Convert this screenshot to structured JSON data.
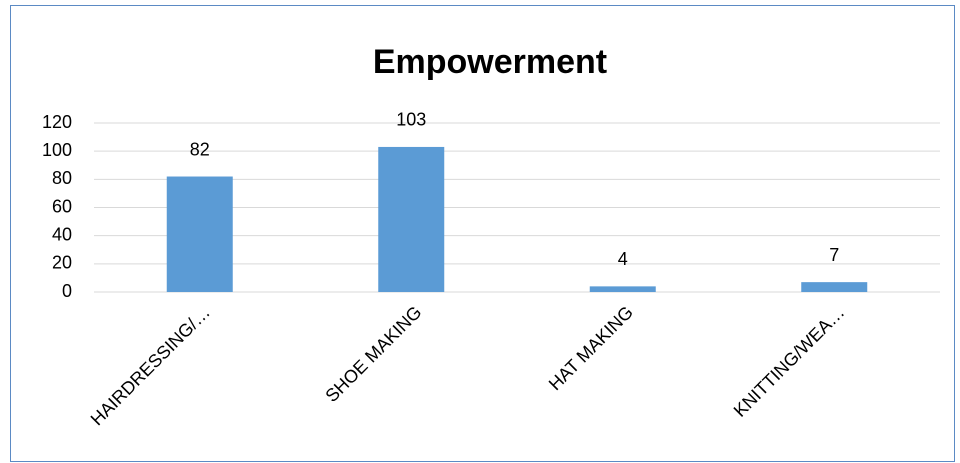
{
  "chart_data": {
    "type": "bar",
    "title": "Empowerment",
    "categories": [
      "HAIRDRESSING/…",
      "SHOE MAKING",
      "HAT MAKING",
      "KNITTING/WEA…"
    ],
    "values": [
      82,
      103,
      4,
      7
    ],
    "color": "#5b9bd5",
    "ylim": [
      0,
      120
    ],
    "yticks": [
      0,
      20,
      40,
      60,
      80,
      100,
      120
    ],
    "grid": true
  }
}
